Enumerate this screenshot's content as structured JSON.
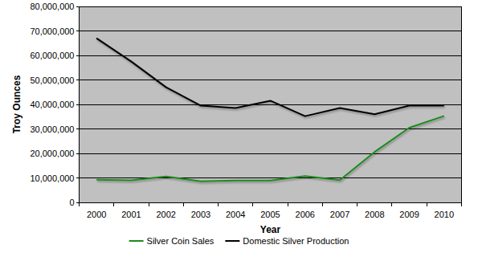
{
  "chart_data": {
    "type": "line",
    "x_label": "Year",
    "y_label": "Troy Ounces",
    "categories": [
      "2000",
      "2001",
      "2002",
      "2003",
      "2004",
      "2005",
      "2006",
      "2007",
      "2008",
      "2009",
      "2010"
    ],
    "series": [
      {
        "name": "Silver Coin Sales",
        "color": "#1e8a1e",
        "values": [
          9300000,
          9000000,
          10600000,
          8600000,
          8900000,
          8900000,
          10700000,
          9100000,
          20600000,
          30500000,
          35300000
        ]
      },
      {
        "name": "Domestic Silver Production",
        "color": "#000000",
        "values": [
          67000000,
          57500000,
          47000000,
          39500000,
          38500000,
          41500000,
          35200000,
          38500000,
          36000000,
          39500000,
          39500000
        ]
      }
    ],
    "ylim": [
      0,
      80000000
    ],
    "yticks": [
      0,
      {
        "value": 10000000,
        "label": "10,000,000"
      },
      {
        "value": 20000000,
        "label": "20,000,000"
      },
      {
        "value": 30000000,
        "label": "30,000,000"
      },
      {
        "value": 40000000,
        "label": "40,000,000"
      },
      {
        "value": 50000000,
        "label": "50,000,000"
      },
      {
        "value": 60000000,
        "label": "60,000,000"
      },
      {
        "value": 70000000,
        "label": "70,000,000"
      },
      {
        "value": 80000000,
        "label": "80,000,000"
      }
    ],
    "grid": true,
    "legend": "bottom"
  }
}
